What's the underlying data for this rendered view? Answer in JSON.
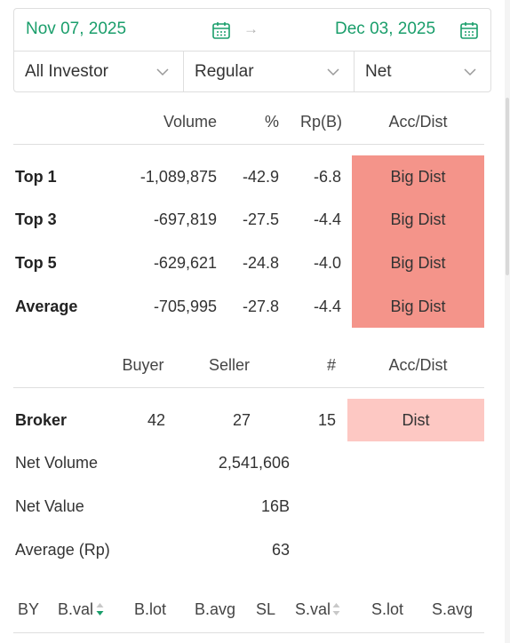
{
  "date_range": {
    "from": "Nov 07, 2025",
    "arrow": "→",
    "to": "Dec 03, 2025"
  },
  "filters": {
    "investor": "All Investor",
    "market": "Regular",
    "mode": "Net"
  },
  "top_table": {
    "headers": {
      "volume": "Volume",
      "pct": "%",
      "rp": "Rp(B)",
      "accdist": "Acc/Dist"
    },
    "rows": [
      {
        "label": "Top 1",
        "volume": "-1,089,875",
        "pct": "-42.9",
        "rp": "-6.8",
        "accdist": "Big Dist"
      },
      {
        "label": "Top 3",
        "volume": "-697,819",
        "pct": "-27.5",
        "rp": "-4.4",
        "accdist": "Big Dist"
      },
      {
        "label": "Top 5",
        "volume": "-629,621",
        "pct": "-24.8",
        "rp": "-4.0",
        "accdist": "Big Dist"
      },
      {
        "label": "Average",
        "volume": "-705,995",
        "pct": "-27.8",
        "rp": "-4.4",
        "accdist": "Big Dist"
      }
    ],
    "accdist_color": "#f4948a"
  },
  "broker_table": {
    "headers": {
      "buyer": "Buyer",
      "seller": "Seller",
      "count": "#",
      "accdist": "Acc/Dist"
    },
    "row": {
      "label": "Broker",
      "buyer": "42",
      "seller": "27",
      "count": "15",
      "accdist": "Dist"
    },
    "accdist_color": "#fdc8c3"
  },
  "summary": [
    {
      "label": "Net Volume",
      "value": "2,541,606"
    },
    {
      "label": "Net Value",
      "value": "16B"
    },
    {
      "label": "Average (Rp)",
      "value": "63"
    }
  ],
  "bottom_headers": [
    "BY",
    "B.val",
    "B.lot",
    "B.avg",
    "SL",
    "S.val",
    "S.lot",
    "S.avg"
  ],
  "colors": {
    "accent": "#1a9e6b",
    "text": "#333333",
    "border": "#dedede"
  },
  "icons": {
    "calendar": "calendar-icon",
    "arrow": "arrow-right-icon",
    "caret": "chevron-down-icon",
    "sort": "sort-icon"
  }
}
